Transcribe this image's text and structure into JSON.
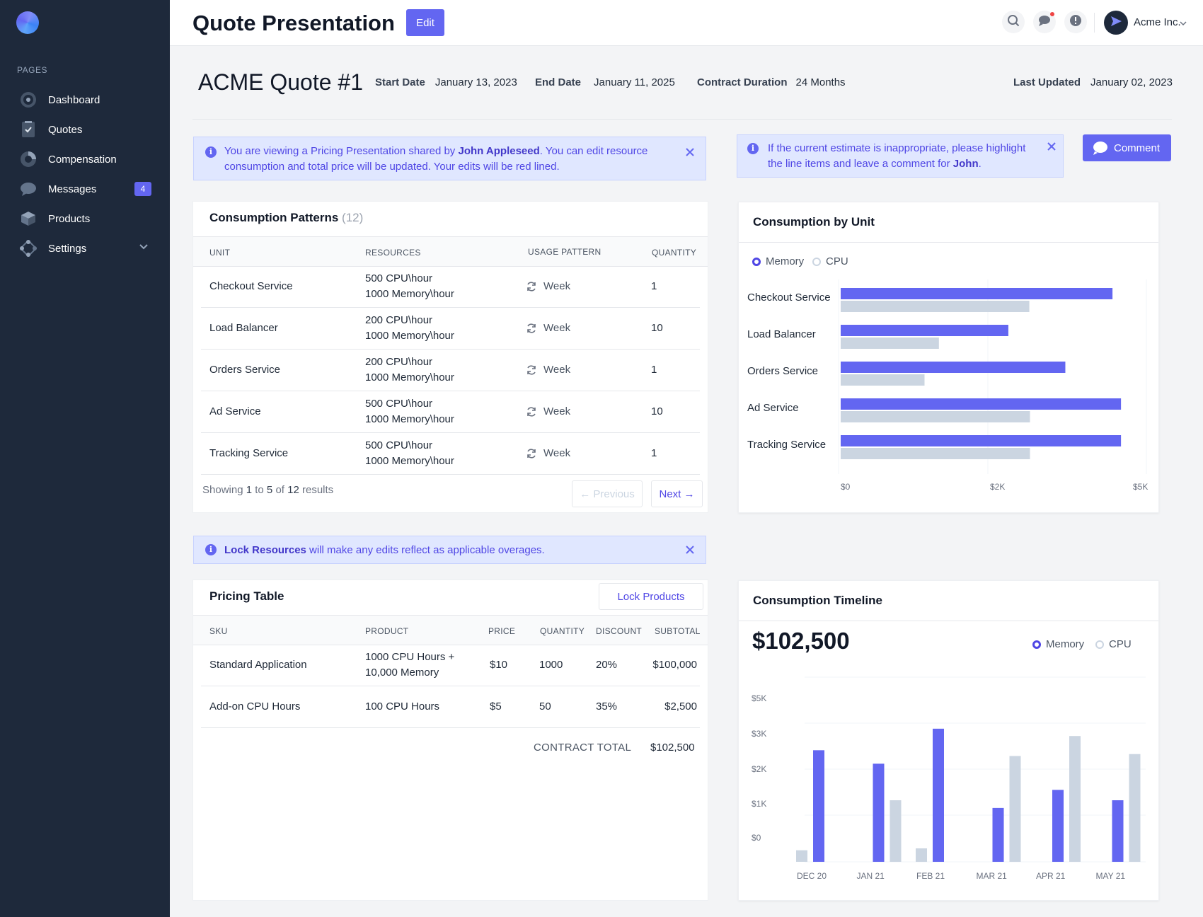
{
  "sidebar": {
    "section_label": "PAGES",
    "items": [
      {
        "label": "Dashboard",
        "icon": "dashboard-icon"
      },
      {
        "label": "Quotes",
        "icon": "quotes-icon"
      },
      {
        "label": "Compensation",
        "icon": "compensation-icon"
      },
      {
        "label": "Messages",
        "icon": "messages-icon",
        "badge": "4"
      },
      {
        "label": "Products",
        "icon": "products-icon"
      },
      {
        "label": "Settings",
        "icon": "settings-icon"
      }
    ]
  },
  "header": {
    "title": "Quote Presentation",
    "edit_label": "Edit",
    "account_name": "Acme Inc."
  },
  "quote": {
    "name": "ACME Quote #1",
    "start_label": "Start Date",
    "start_value": "January 13, 2023",
    "end_label": "End Date",
    "end_value": "January 11, 2025",
    "duration_label": "Contract Duration",
    "duration_value": "24 Months",
    "updated_label": "Last Updated",
    "updated_value": "January 02, 2023"
  },
  "alerts": {
    "pricing": {
      "pre": "You are viewing a Pricing Presentation shared by ",
      "name": "John Appleseed",
      "post": ". You can edit resource consumption and total price will be updated. Your edits will be red lined."
    },
    "estimate": {
      "pre": "If the current estimate is inappropriate, please highlight the line items and leave a comment for ",
      "name": "John",
      "post": "."
    },
    "lock": {
      "strong": "Lock Resources",
      "post": " will make any edits reflect as applicable overages."
    }
  },
  "comment_label": "Comment",
  "consumption": {
    "title": "Consumption Patterns",
    "count": "(12)",
    "headers": [
      "UNIT",
      "RESOURCES",
      "USAGE PATTERN",
      "QUANTITY"
    ],
    "rows": [
      {
        "unit": "Checkout Service",
        "res1": "500 CPU\\hour",
        "res2": "1000 Memory\\hour",
        "pattern": "Week",
        "qty": "1"
      },
      {
        "unit": "Load Balancer",
        "res1": "200 CPU\\hour",
        "res2": "1000 Memory\\hour",
        "pattern": "Week",
        "qty": "10"
      },
      {
        "unit": "Orders Service",
        "res1": "200 CPU\\hour",
        "res2": "1000 Memory\\hour",
        "pattern": "Week",
        "qty": "1"
      },
      {
        "unit": "Ad Service",
        "res1": "500 CPU\\hour",
        "res2": "1000 Memory\\hour",
        "pattern": "Week",
        "qty": "10"
      },
      {
        "unit": "Tracking Service",
        "res1": "500 CPU\\hour",
        "res2": "1000 Memory\\hour",
        "pattern": "Week",
        "qty": "1"
      }
    ],
    "pager": {
      "showing": "Showing",
      "from": "1",
      "to_word": "to",
      "to": "5",
      "of_word": "of",
      "total": "12",
      "results": "results"
    },
    "prev_label": "← Previous",
    "next_label": "Next →"
  },
  "pricing": {
    "title": "Pricing Table",
    "lock_label": "Lock Products",
    "headers": [
      "SKU",
      "PRODUCT",
      "PRICE",
      "QUANTITY",
      "DISCOUNT",
      "SUBTOTAL"
    ],
    "rows": [
      {
        "sku": "Standard Application",
        "prod1": "1000 CPU Hours +",
        "prod2": "10,000 Memory",
        "price": "$10",
        "qty": "1000",
        "discount": "20%",
        "subtotal": "$100,000"
      },
      {
        "sku": "Add-on CPU Hours",
        "prod1": "100 CPU Hours",
        "prod2": "",
        "price": "$5",
        "qty": "50",
        "discount": "35%",
        "subtotal": "$2,500"
      }
    ],
    "total_label": "CONTRACT TOTAL",
    "total_value": "$102,500"
  },
  "unit_chart_card": {
    "title": "Consumption by Unit",
    "legend": [
      "Memory",
      "CPU"
    ]
  },
  "timeline_card": {
    "title": "Consumption Timeline",
    "total": "$102,500",
    "legend": [
      "Memory",
      "CPU"
    ]
  },
  "colors": {
    "memory": "#6366f1",
    "cpu": "#cbd5e1",
    "sidebar": "#1e293b",
    "accent": "#6366f1"
  },
  "chart_data": [
    {
      "type": "bar",
      "orientation": "horizontal",
      "title": "Consumption by Unit",
      "categories": [
        "Checkout Service",
        "Load Balancer",
        "Orders Service",
        "Ad Service",
        "Tracking Service"
      ],
      "series": [
        {
          "name": "Memory",
          "values": [
            4150,
            2560,
            3430,
            4280,
            4280
          ]
        },
        {
          "name": "CPU",
          "values": [
            2880,
            1500,
            1280,
            2890,
            2890
          ]
        }
      ],
      "x_ticks": [
        "$0",
        "$2K",
        "$5K"
      ],
      "xlim": [
        0,
        4700
      ],
      "legend": "top-left",
      "grid": true
    },
    {
      "type": "bar",
      "title": "Consumption Timeline",
      "categories": [
        "DEC 20",
        "JAN 21",
        "FEB 21",
        "MAR 21",
        "APR 21",
        "MAY 21"
      ],
      "series": [
        {
          "name": "CPU",
          "values": [
            300,
            0,
            350,
            0,
            0,
            0
          ]
        },
        {
          "name": "Memory",
          "values": [
            2900,
            2550,
            3460,
            1400,
            1870,
            1600
          ]
        },
        {
          "name": "CPU",
          "values": [
            0,
            1600,
            0,
            2750,
            3270,
            2800
          ]
        }
      ],
      "y_ticks": [
        "$0",
        "$1K",
        "$2K",
        "$3K",
        "$5K"
      ],
      "ylim": [
        0,
        4800
      ],
      "legend": "top-right",
      "grid": true
    }
  ]
}
